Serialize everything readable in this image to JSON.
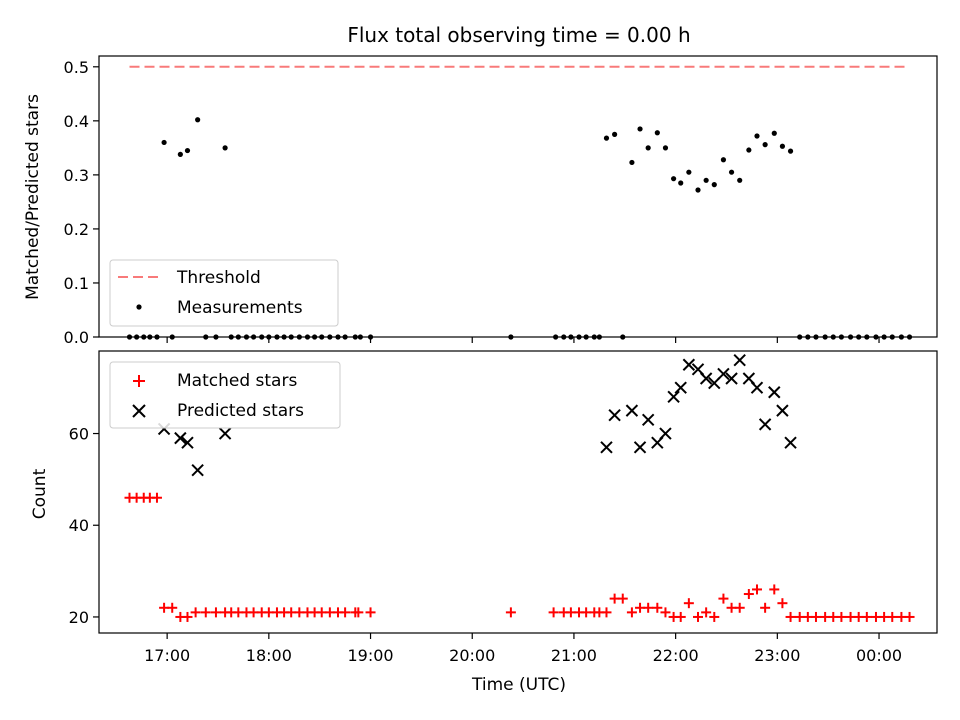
{
  "chart_data": {
    "title": "Flux total observing time = 0.00 h",
    "xlabel": "Time (UTC)",
    "x_unit": "hours UTC (values past 24 are after midnight)",
    "xlim": [
      16.33,
      24.57
    ],
    "x_ticks": [
      {
        "x": 17,
        "label": "17:00"
      },
      {
        "x": 18,
        "label": "18:00"
      },
      {
        "x": 19,
        "label": "19:00"
      },
      {
        "x": 20,
        "label": "20:00"
      },
      {
        "x": 21,
        "label": "21:00"
      },
      {
        "x": 22,
        "label": "22:00"
      },
      {
        "x": 23,
        "label": "23:00"
      },
      {
        "x": 24,
        "label": "00:00"
      }
    ],
    "panels": [
      {
        "type": "scatter",
        "ylabel": "Matched/Predicted stars",
        "ylim": [
          0,
          0.52
        ],
        "y_ticks": [
          "0.0",
          "0.1",
          "0.2",
          "0.3",
          "0.4",
          "0.5"
        ],
        "legend": "lower-left",
        "series": [
          {
            "name": "Threshold",
            "kind": "line",
            "style": "dashed",
            "color": "#f87a7a",
            "x": [
              16.63,
              24.27
            ],
            "y": [
              0.5,
              0.5
            ]
          },
          {
            "name": "Measurements",
            "kind": "points",
            "color": "#000000",
            "x": [
              16.63,
              16.7,
              16.77,
              16.83,
              16.9,
              16.97,
              17.05,
              17.13,
              17.2,
              17.3,
              17.38,
              17.48,
              17.57,
              17.63,
              17.7,
              17.78,
              17.85,
              17.93,
              18.0,
              18.08,
              18.15,
              18.22,
              18.3,
              18.38,
              18.45,
              18.52,
              18.6,
              18.68,
              18.75,
              18.85,
              18.9,
              19.0,
              20.38,
              20.82,
              20.9,
              20.97,
              21.05,
              21.12,
              21.2,
              21.25,
              21.32,
              21.4,
              21.48,
              21.57,
              21.65,
              21.73,
              21.82,
              21.9,
              21.98,
              22.05,
              22.13,
              22.22,
              22.3,
              22.38,
              22.47,
              22.55,
              22.63,
              22.72,
              22.8,
              22.88,
              22.97,
              23.05,
              23.13,
              23.22,
              23.3,
              23.38,
              23.47,
              23.55,
              23.63,
              23.72,
              23.8,
              23.88,
              23.97,
              24.05,
              24.13,
              24.22,
              24.3
            ],
            "y": [
              0,
              0,
              0,
              0,
              0,
              0.36,
              0,
              0.338,
              0.345,
              0.402,
              0,
              0,
              0.35,
              0,
              0,
              0,
              0,
              0,
              0,
              0,
              0,
              0,
              0,
              0,
              0,
              0,
              0,
              0,
              0,
              0,
              0,
              0,
              0,
              0,
              0,
              0,
              0,
              0,
              0,
              0,
              0.368,
              0.375,
              0,
              0.323,
              0.385,
              0.35,
              0.378,
              0.35,
              0.293,
              0.285,
              0.305,
              0.272,
              0.29,
              0.282,
              0.328,
              0.305,
              0.29,
              0.346,
              0.372,
              0.356,
              0.377,
              0.353,
              0.344,
              0,
              0,
              0,
              0,
              0,
              0,
              0,
              0,
              0,
              0,
              0,
              0,
              0,
              0
            ]
          }
        ]
      },
      {
        "type": "scatter",
        "ylabel": "Count",
        "ylim": [
          16.5,
          78
        ],
        "y_ticks": [
          "20",
          "40",
          "60"
        ],
        "legend": "upper-left",
        "series": [
          {
            "name": "Matched stars",
            "marker": "plus",
            "color": "#ff0000",
            "x": [
              16.63,
              16.7,
              16.77,
              16.83,
              16.9,
              16.97,
              17.05,
              17.13,
              17.2,
              17.28,
              17.38,
              17.48,
              17.57,
              17.63,
              17.7,
              17.78,
              17.85,
              17.93,
              18.0,
              18.08,
              18.15,
              18.22,
              18.3,
              18.38,
              18.45,
              18.52,
              18.6,
              18.68,
              18.75,
              18.85,
              18.88,
              19.0,
              20.38,
              20.8,
              20.9,
              20.97,
              21.05,
              21.12,
              21.2,
              21.25,
              21.32,
              21.4,
              21.48,
              21.57,
              21.65,
              21.73,
              21.82,
              21.9,
              21.98,
              22.05,
              22.13,
              22.22,
              22.3,
              22.38,
              22.47,
              22.55,
              22.63,
              22.72,
              22.8,
              22.88,
              22.97,
              23.05,
              23.13,
              23.22,
              23.3,
              23.38,
              23.47,
              23.55,
              23.63,
              23.72,
              23.8,
              23.88,
              23.97,
              24.05,
              24.13,
              24.22,
              24.3
            ],
            "y": [
              46,
              46,
              46,
              46,
              46,
              22,
              22,
              20,
              20,
              21,
              21,
              21,
              21,
              21,
              21,
              21,
              21,
              21,
              21,
              21,
              21,
              21,
              21,
              21,
              21,
              21,
              21,
              21,
              21,
              21,
              21,
              21,
              21,
              21,
              21,
              21,
              21,
              21,
              21,
              21,
              21,
              24,
              24,
              21,
              22,
              22,
              22,
              21,
              20,
              20,
              23,
              20,
              21,
              20,
              24,
              22,
              22,
              25,
              26,
              22,
              26,
              23,
              20,
              20,
              20,
              20,
              20,
              20,
              20,
              20,
              20,
              20,
              20,
              20,
              20,
              20,
              20
            ]
          },
          {
            "name": "Predicted stars",
            "marker": "x",
            "color": "#000000",
            "x": [
              16.97,
              17.13,
              17.2,
              17.3,
              17.57,
              21.32,
              21.4,
              21.57,
              21.65,
              21.73,
              21.82,
              21.9,
              21.98,
              22.05,
              22.13,
              22.22,
              22.3,
              22.38,
              22.47,
              22.55,
              22.63,
              22.72,
              22.8,
              22.88,
              22.97,
              23.05,
              23.13
            ],
            "y": [
              61,
              59,
              58,
              52,
              60,
              57,
              64,
              65,
              57,
              63,
              58,
              60,
              68,
              70,
              75,
              74,
              72,
              71,
              73,
              72,
              76,
              72,
              70,
              62,
              69,
              65,
              58
            ]
          }
        ]
      }
    ]
  }
}
